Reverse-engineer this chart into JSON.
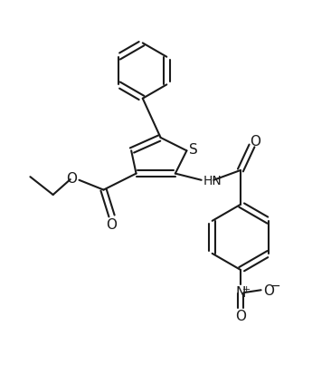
{
  "bg_color": "#ffffff",
  "line_color": "#1a1a1a",
  "bond_lw": 1.5,
  "figsize": [
    3.66,
    4.14
  ],
  "dpi": 100,
  "xlim": [
    0,
    10
  ],
  "ylim": [
    0,
    11.3
  ]
}
